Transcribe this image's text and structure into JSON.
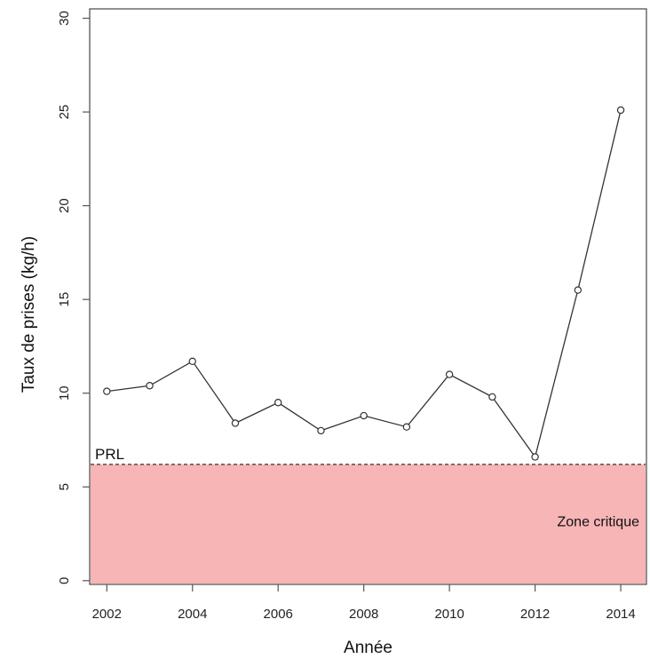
{
  "chart_data": {
    "type": "line",
    "title": "",
    "xlabel": "Année",
    "ylabel": "Taux de prises (kg/h)",
    "xlim": [
      2001.6,
      2014.6
    ],
    "ylim": [
      -0.2,
      30.5
    ],
    "xticks": [
      2002,
      2004,
      2006,
      2008,
      2010,
      2012,
      2014
    ],
    "yticks": [
      0,
      5,
      10,
      15,
      20,
      25,
      30
    ],
    "grid": false,
    "legend": "none",
    "series": [
      {
        "x": [
          2002,
          2003,
          2004,
          2005,
          2006,
          2007,
          2008,
          2009,
          2010,
          2011,
          2012,
          2013,
          2014
        ],
        "y": [
          10.1,
          10.4,
          11.7,
          8.4,
          9.5,
          8.0,
          8.8,
          8.2,
          11.0,
          9.8,
          6.6,
          15.5,
          25.1
        ]
      }
    ],
    "reference_line": {
      "label": "PRL",
      "y": 6.2,
      "style": "dashed"
    },
    "zone": {
      "label": "Zone critique",
      "y_from": 0,
      "y_to": 6.2,
      "color": "#f7b5b6"
    },
    "colors": {
      "line": "#333333",
      "marker_fill": "#ffffff",
      "zone": "#f7b5b6"
    }
  }
}
